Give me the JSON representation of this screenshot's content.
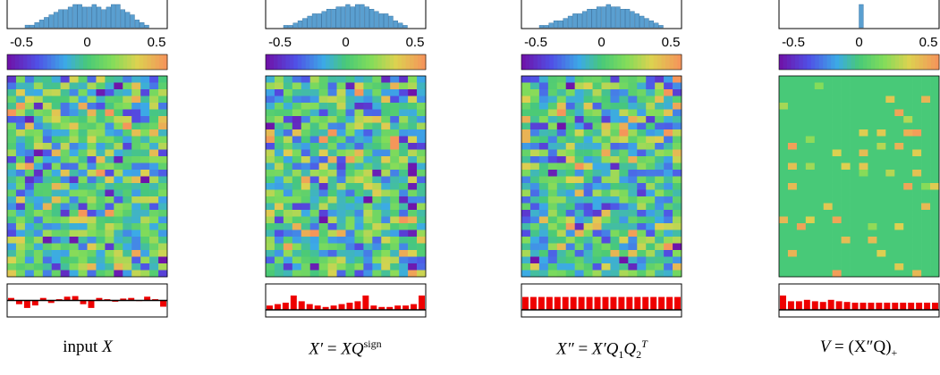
{
  "figure": {
    "colorbar": {
      "ticks": [
        "-0.5",
        "0",
        "0.5"
      ],
      "range": [
        -0.6,
        0.6
      ]
    },
    "panels": [
      {
        "id": "input",
        "caption": {
          "text": "input",
          "var": "X"
        },
        "histogram": [
          1,
          1,
          2,
          3,
          4,
          5,
          6,
          7,
          7,
          8,
          9,
          9,
          8,
          8,
          9,
          8,
          7,
          8,
          9,
          9,
          7,
          6,
          5,
          3,
          2,
          1
        ],
        "matrix_style": "dense",
        "bars": [
          0.2,
          -0.3,
          -0.6,
          -0.4,
          0.2,
          -0.2,
          0.1,
          0.3,
          0.35,
          -0.3,
          -0.6,
          0.2,
          0.1,
          -0.1,
          0.15,
          0.2,
          -0.05,
          0.3,
          0.1,
          -0.5
        ],
        "bars_mode": "signed",
        "seed": 11
      },
      {
        "id": "sign",
        "caption": {
          "lhs": "X′",
          "rhs": "XQ",
          "sup": "sign"
        },
        "histogram": [
          1,
          1,
          2,
          3,
          4,
          5,
          6,
          6,
          7,
          8,
          8,
          9,
          9,
          10,
          9,
          10,
          10,
          9,
          8,
          7,
          6,
          6,
          5,
          3,
          2,
          1
        ],
        "matrix_style": "dense",
        "bars": [
          0.3,
          0.4,
          0.5,
          1.0,
          0.6,
          0.4,
          0.3,
          0.2,
          0.3,
          0.4,
          0.5,
          0.6,
          1.0,
          0.3,
          0.2,
          0.2,
          0.3,
          0.3,
          0.4,
          1.0
        ],
        "bars_mode": "positive",
        "seed": 23
      },
      {
        "id": "rot",
        "caption": {
          "lhs": "X″",
          "rhs": "X′Q",
          "sub1": "1",
          "q2": "Q",
          "sub2": "2",
          "sup2": "T"
        },
        "histogram": [
          1,
          1,
          2,
          3,
          3,
          4,
          5,
          6,
          6,
          7,
          8,
          8,
          9,
          9,
          10,
          9,
          9,
          8,
          8,
          7,
          6,
          5,
          4,
          3,
          2,
          1
        ],
        "matrix_style": "dense",
        "bars": [
          0.9,
          0.9,
          0.9,
          0.9,
          0.9,
          0.9,
          0.9,
          0.9,
          0.9,
          0.9,
          0.9,
          0.9,
          0.9,
          0.9,
          0.9,
          0.9,
          0.9,
          0.9,
          0.9,
          0.9
        ],
        "bars_mode": "positive",
        "seed": 37
      },
      {
        "id": "relu",
        "caption": {
          "lhs": "V",
          "rhs": "(X″Q)",
          "sub": "+"
        },
        "histogram": [
          0,
          0,
          0,
          0,
          0,
          0,
          0,
          0,
          0,
          0,
          0,
          0,
          0,
          10,
          0,
          0,
          0,
          0,
          0,
          0,
          0,
          0,
          0,
          0,
          0,
          0
        ],
        "matrix_style": "sparse",
        "bars": [
          1.0,
          0.6,
          0.6,
          0.7,
          0.6,
          0.55,
          0.7,
          0.6,
          0.55,
          0.5,
          0.5,
          0.5,
          0.5,
          0.5,
          0.5,
          0.5,
          0.5,
          0.5,
          0.5,
          0.5
        ],
        "bars_mode": "positive",
        "seed": 53
      }
    ]
  }
}
